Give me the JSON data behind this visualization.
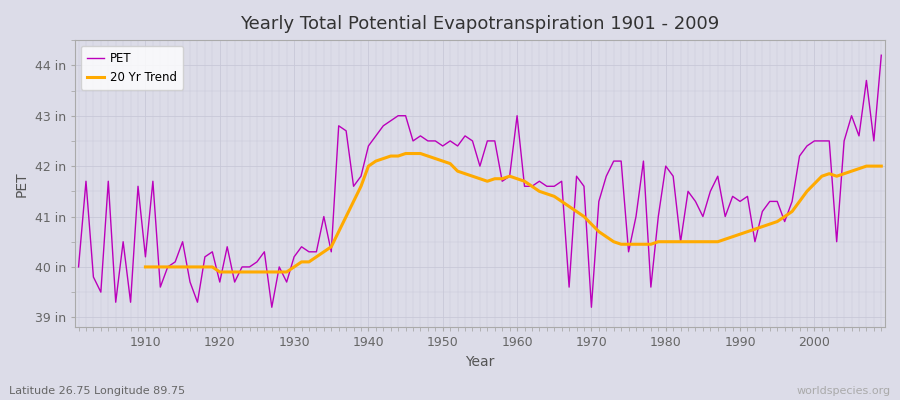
{
  "title": "Yearly Total Potential Evapotranspiration 1901 - 2009",
  "xlabel": "Year",
  "ylabel": "PET",
  "subtitle_left": "Latitude 26.75 Longitude 89.75",
  "subtitle_right": "worldspecies.org",
  "pet_color": "#bb00bb",
  "trend_color": "#ffaa00",
  "background_color": "#dcdce8",
  "grid_color": "#c8c8d8",
  "ylim": [
    38.8,
    44.5
  ],
  "yticks": [
    39,
    40,
    41,
    42,
    43,
    44
  ],
  "ytick_labels": [
    "39 in",
    "40 in",
    "41 in",
    "42 in",
    "43 in",
    "44 in"
  ],
  "xticks": [
    1910,
    1920,
    1930,
    1940,
    1950,
    1960,
    1970,
    1980,
    1990,
    2000
  ],
  "years": [
    1901,
    1902,
    1903,
    1904,
    1905,
    1906,
    1907,
    1908,
    1909,
    1910,
    1911,
    1912,
    1913,
    1914,
    1915,
    1916,
    1917,
    1918,
    1919,
    1920,
    1921,
    1922,
    1923,
    1924,
    1925,
    1926,
    1927,
    1928,
    1929,
    1930,
    1931,
    1932,
    1933,
    1934,
    1935,
    1936,
    1937,
    1938,
    1939,
    1940,
    1941,
    1942,
    1943,
    1944,
    1945,
    1946,
    1947,
    1948,
    1949,
    1950,
    1951,
    1952,
    1953,
    1954,
    1955,
    1956,
    1957,
    1958,
    1959,
    1960,
    1961,
    1962,
    1963,
    1964,
    1965,
    1966,
    1967,
    1968,
    1969,
    1970,
    1971,
    1972,
    1973,
    1974,
    1975,
    1976,
    1977,
    1978,
    1979,
    1980,
    1981,
    1982,
    1983,
    1984,
    1985,
    1986,
    1987,
    1988,
    1989,
    1990,
    1991,
    1992,
    1993,
    1994,
    1995,
    1996,
    1997,
    1998,
    1999,
    2000,
    2001,
    2002,
    2003,
    2004,
    2005,
    2006,
    2007,
    2008,
    2009
  ],
  "pet_values": [
    40.0,
    41.7,
    39.8,
    39.5,
    41.7,
    39.3,
    40.5,
    39.3,
    41.6,
    40.2,
    41.7,
    39.6,
    40.0,
    40.1,
    40.5,
    39.7,
    39.3,
    40.2,
    40.3,
    39.7,
    40.4,
    39.7,
    40.0,
    40.0,
    40.1,
    40.3,
    39.2,
    40.0,
    39.7,
    40.2,
    40.4,
    40.3,
    40.3,
    41.0,
    40.3,
    42.8,
    42.7,
    41.6,
    41.8,
    42.4,
    42.6,
    42.8,
    42.9,
    43.0,
    43.0,
    42.5,
    42.6,
    42.5,
    42.5,
    42.4,
    42.5,
    42.4,
    42.6,
    42.5,
    42.0,
    42.5,
    42.5,
    41.7,
    41.8,
    43.0,
    41.6,
    41.6,
    41.7,
    41.6,
    41.6,
    41.7,
    39.6,
    41.8,
    41.6,
    39.2,
    41.3,
    41.8,
    42.1,
    42.1,
    40.3,
    41.0,
    42.1,
    39.6,
    41.0,
    42.0,
    41.8,
    40.5,
    41.5,
    41.3,
    41.0,
    41.5,
    41.8,
    41.0,
    41.4,
    41.3,
    41.4,
    40.5,
    41.1,
    41.3,
    41.3,
    40.9,
    41.3,
    42.2,
    42.4,
    42.5,
    42.5,
    42.5,
    40.5,
    42.5,
    43.0,
    42.6,
    43.7,
    42.5,
    44.2
  ],
  "trend_values": [
    null,
    null,
    null,
    null,
    null,
    null,
    null,
    null,
    null,
    40.0,
    40.0,
    40.0,
    40.0,
    40.0,
    40.0,
    40.0,
    40.0,
    40.0,
    40.0,
    39.9,
    39.9,
    39.9,
    39.9,
    39.9,
    39.9,
    39.9,
    39.9,
    39.9,
    39.9,
    40.0,
    40.1,
    40.1,
    40.2,
    40.3,
    40.4,
    40.7,
    41.0,
    41.3,
    41.6,
    42.0,
    42.1,
    42.15,
    42.2,
    42.2,
    42.25,
    42.25,
    42.25,
    42.2,
    42.15,
    42.1,
    42.05,
    41.9,
    41.85,
    41.8,
    41.75,
    41.7,
    41.75,
    41.75,
    41.8,
    41.75,
    41.7,
    41.6,
    41.5,
    41.45,
    41.4,
    41.3,
    41.2,
    41.1,
    41.0,
    40.85,
    40.7,
    40.6,
    40.5,
    40.45,
    40.45,
    40.45,
    40.45,
    40.45,
    40.5,
    40.5,
    40.5,
    40.5,
    40.5,
    40.5,
    40.5,
    40.5,
    40.5,
    40.55,
    40.6,
    40.65,
    40.7,
    40.75,
    40.8,
    40.85,
    40.9,
    41.0,
    41.1,
    41.3,
    41.5,
    41.65,
    41.8,
    41.85,
    41.8,
    41.85,
    41.9,
    41.95,
    42.0,
    42.0,
    42.0
  ]
}
